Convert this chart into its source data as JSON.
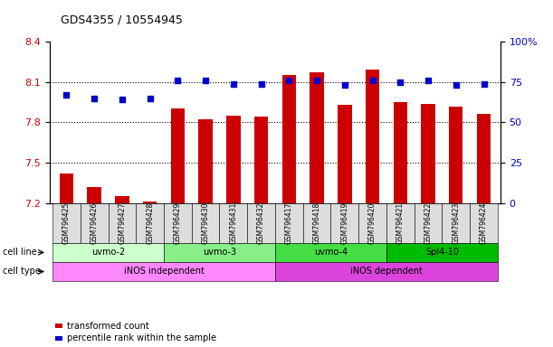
{
  "title": "GDS4355 / 10554945",
  "samples": [
    "GSM796425",
    "GSM796426",
    "GSM796427",
    "GSM796428",
    "GSM796429",
    "GSM796430",
    "GSM796431",
    "GSM796432",
    "GSM796417",
    "GSM796418",
    "GSM796419",
    "GSM796420",
    "GSM796421",
    "GSM796422",
    "GSM796423",
    "GSM796424"
  ],
  "transformed_count": [
    7.42,
    7.32,
    7.25,
    7.21,
    7.9,
    7.82,
    7.85,
    7.84,
    8.15,
    8.17,
    7.93,
    8.19,
    7.95,
    7.94,
    7.92,
    7.86
  ],
  "percentile_rank": [
    67,
    65,
    64,
    65,
    76,
    76,
    74,
    74,
    76,
    76,
    73,
    76,
    75,
    76,
    73,
    74
  ],
  "ylim_left": [
    7.2,
    8.4
  ],
  "ylim_right": [
    0,
    100
  ],
  "yticks_left": [
    7.2,
    7.5,
    7.8,
    8.1,
    8.4
  ],
  "yticks_right": [
    0,
    25,
    50,
    75,
    100
  ],
  "bar_color": "#cc0000",
  "dot_color": "#0000cc",
  "bar_bottom": 7.2,
  "cell_lines": [
    {
      "label": "uvmo-2",
      "start": 0,
      "end": 3,
      "color": "#ccffcc"
    },
    {
      "label": "uvmo-3",
      "start": 4,
      "end": 7,
      "color": "#88ee88"
    },
    {
      "label": "uvmo-4",
      "start": 8,
      "end": 11,
      "color": "#44dd44"
    },
    {
      "label": "Spl4-10",
      "start": 12,
      "end": 15,
      "color": "#00bb00"
    }
  ],
  "cell_types": [
    {
      "label": "iNOS independent",
      "start": 0,
      "end": 7,
      "color": "#ff88ff"
    },
    {
      "label": "iNOS dependent",
      "start": 8,
      "end": 15,
      "color": "#dd44dd"
    }
  ],
  "cell_line_label": "cell line",
  "cell_type_label": "cell type",
  "legend_bar_label": "transformed count",
  "legend_dot_label": "percentile rank within the sample",
  "bg_color": "#ffffff",
  "tick_label_color_left": "#cc0000",
  "tick_label_color_right": "#0000cc",
  "grid_color": "#000000",
  "bar_width": 0.5
}
